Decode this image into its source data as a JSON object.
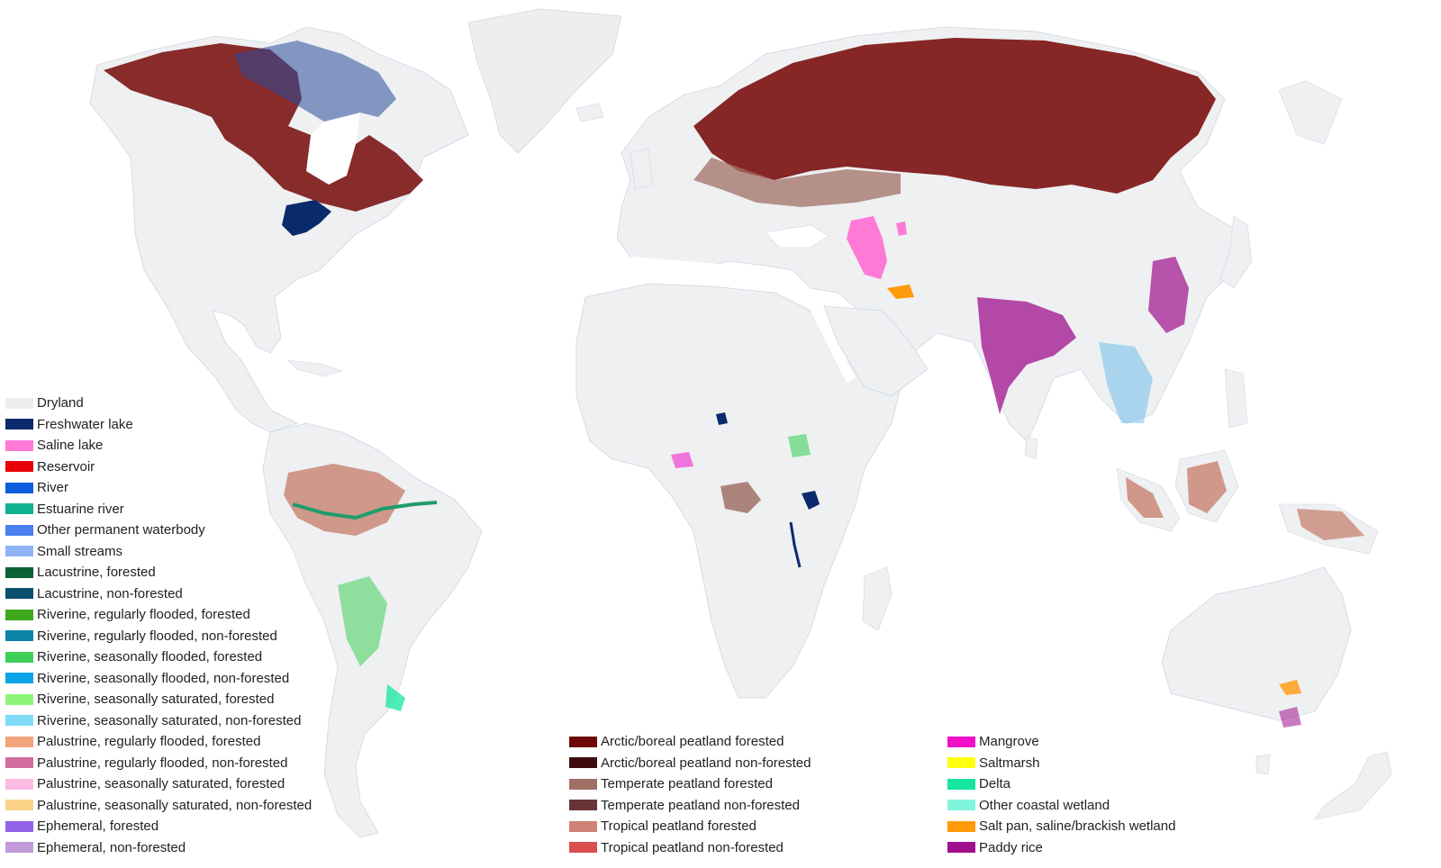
{
  "legend": {
    "left": [
      {
        "label": "Dryland",
        "color": "#eeeeee"
      },
      {
        "label": "Freshwater lake",
        "color": "#0b2a6b"
      },
      {
        "label": "Saline lake",
        "color": "#ff79d6"
      },
      {
        "label": "Reservoir",
        "color": "#e8000b"
      },
      {
        "label": "River",
        "color": "#0b5fdc"
      },
      {
        "label": "Estuarine river",
        "color": "#10b38f"
      },
      {
        "label": "Other permanent waterbody",
        "color": "#4a7ff0"
      },
      {
        "label": "Small streams",
        "color": "#8fb3f5"
      },
      {
        "label": "Lacustrine, forested",
        "color": "#0b6034"
      },
      {
        "label": "Lacustrine, non-forested",
        "color": "#0a4f6e"
      },
      {
        "label": "Riverine, regularly flooded, forested",
        "color": "#3fa81c"
      },
      {
        "label": "Riverine, regularly flooded, non-forested",
        "color": "#0c84a8"
      },
      {
        "label": "Riverine, seasonally flooded, forested",
        "color": "#3fd05a"
      },
      {
        "label": "Riverine, seasonally flooded, non-forested",
        "color": "#0aa3e6"
      },
      {
        "label": "Riverine, seasonally saturated, forested",
        "color": "#8ef57a"
      },
      {
        "label": "Riverine, seasonally saturated, non-forested",
        "color": "#7fdbf7"
      },
      {
        "label": "Palustrine, regularly flooded, forested",
        "color": "#f2a57c"
      },
      {
        "label": "Palustrine, regularly flooded, non-forested",
        "color": "#d06ca0"
      },
      {
        "label": "Palustrine, seasonally saturated, forested",
        "color": "#fbbbe3"
      },
      {
        "label": "Palustrine, seasonally saturated, non-forested",
        "color": "#fad289"
      },
      {
        "label": "Ephemeral, forested",
        "color": "#9262e8"
      },
      {
        "label": "Ephemeral, non-forested",
        "color": "#c39ad8"
      }
    ],
    "middle": [
      {
        "label": "Arctic/boreal peatland forested",
        "color": "#6e0808"
      },
      {
        "label": "Arctic/boreal peatland non-forested",
        "color": "#3e0b0b"
      },
      {
        "label": "Temperate peatland forested",
        "color": "#a07066"
      },
      {
        "label": "Temperate peatland non-forested",
        "color": "#6b3434"
      },
      {
        "label": "Tropical peatland forested",
        "color": "#cf8175"
      },
      {
        "label": "Tropical peatland non-forested",
        "color": "#d94f4f"
      }
    ],
    "right": [
      {
        "label": "Mangrove",
        "color": "#f20fc8"
      },
      {
        "label": "Saltmarsh",
        "color": "#ffff10"
      },
      {
        "label": "Delta",
        "color": "#14e6a0"
      },
      {
        "label": "Other coastal wetland",
        "color": "#7ff5dc"
      },
      {
        "label": "Salt pan, saline/brackish wetland",
        "color": "#ff9a0a"
      },
      {
        "label": "Paddy rice",
        "color": "#a0108c"
      }
    ]
  }
}
